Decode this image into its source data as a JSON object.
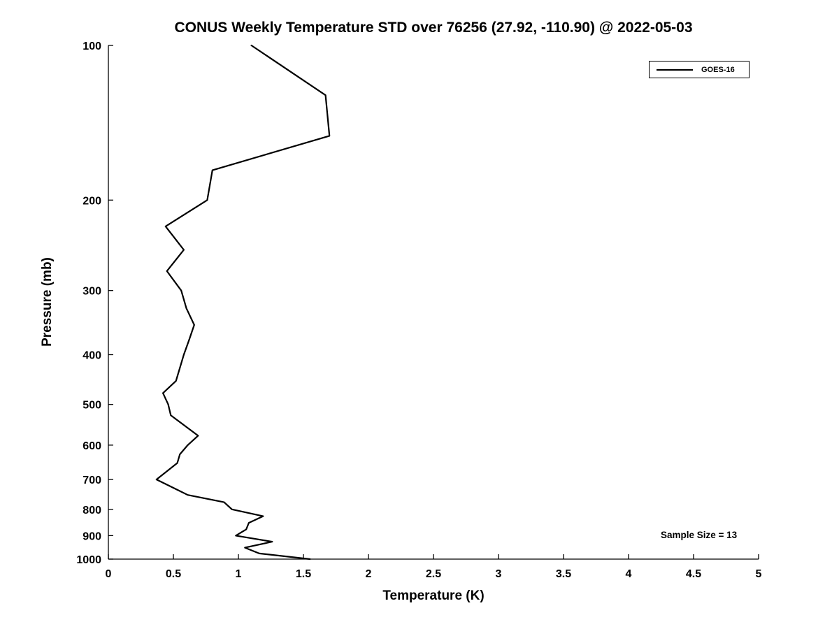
{
  "chart_data": {
    "type": "line",
    "title": "CONUS Weekly Temperature STD over 76256 (27.92, -110.90) @ 2022-05-03",
    "xlabel": "Temperature (K)",
    "ylabel": "Pressure (mb)",
    "xlim": [
      0,
      5
    ],
    "ylim": [
      100,
      1000
    ],
    "yscale": "log",
    "y_inverted": true,
    "grid": false,
    "line_color": "#000000",
    "background_color": "#ffffff",
    "xticks": {
      "values": [
        0,
        0.5,
        1,
        1.5,
        2,
        2.5,
        3,
        3.5,
        4,
        4.5,
        5
      ],
      "labels": [
        "0",
        "0.5",
        "1",
        "1.5",
        "2",
        "2.5",
        "3",
        "3.5",
        "4",
        "4.5",
        "5"
      ]
    },
    "yticks": {
      "values": [
        100,
        200,
        300,
        400,
        500,
        600,
        700,
        800,
        900,
        1000
      ],
      "labels": [
        "100",
        "200",
        "300",
        "400",
        "500",
        "600",
        "700",
        "800",
        "900",
        "1000"
      ]
    },
    "legend": {
      "position": "top-right",
      "entries": [
        {
          "label": "GOES-16",
          "color": "#000000"
        }
      ]
    },
    "annotation": "Sample Size = 13",
    "series": [
      {
        "name": "GOES-16",
        "color": "#000000",
        "points_format": [
          "pressure_mb",
          "temperature_std_K"
        ],
        "points": [
          [
            100,
            1.1
          ],
          [
            125,
            1.67
          ],
          [
            150,
            1.7
          ],
          [
            175,
            0.8
          ],
          [
            200,
            0.76
          ],
          [
            225,
            0.44
          ],
          [
            250,
            0.58
          ],
          [
            275,
            0.45
          ],
          [
            300,
            0.56
          ],
          [
            325,
            0.6
          ],
          [
            350,
            0.66
          ],
          [
            375,
            0.62
          ],
          [
            400,
            0.58
          ],
          [
            450,
            0.52
          ],
          [
            475,
            0.42
          ],
          [
            500,
            0.46
          ],
          [
            525,
            0.48
          ],
          [
            575,
            0.69
          ],
          [
            600,
            0.61
          ],
          [
            625,
            0.55
          ],
          [
            650,
            0.53
          ],
          [
            700,
            0.37
          ],
          [
            750,
            0.61
          ],
          [
            775,
            0.89
          ],
          [
            800,
            0.95
          ],
          [
            825,
            1.19
          ],
          [
            850,
            1.08
          ],
          [
            875,
            1.06
          ],
          [
            900,
            0.98
          ],
          [
            925,
            1.26
          ],
          [
            950,
            1.05
          ],
          [
            975,
            1.16
          ],
          [
            1000,
            1.55
          ]
        ]
      }
    ]
  }
}
